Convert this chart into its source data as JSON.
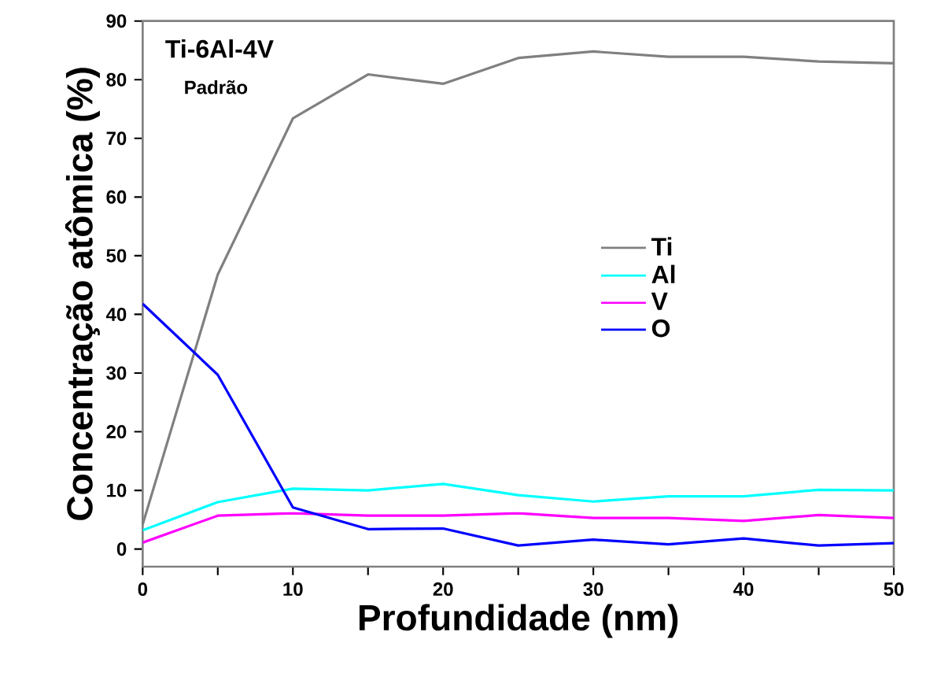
{
  "chart_data": {
    "type": "line",
    "title": "Ti-6Al-4V",
    "subtitle": "Padrão",
    "xlabel": "Profundidade (nm)",
    "ylabel": "Concentração atômica (%)",
    "x": [
      0,
      5,
      10,
      15,
      20,
      25,
      30,
      35,
      40,
      45,
      50
    ],
    "series": [
      {
        "name": "Ti",
        "color": "#808080",
        "values": [
          4.2,
          46.8,
          73.4,
          80.9,
          79.3,
          83.7,
          84.8,
          83.9,
          83.9,
          83.1,
          82.8
        ]
      },
      {
        "name": "Al",
        "color": "#00ffff",
        "values": [
          3.2,
          8,
          10.3,
          10,
          11.1,
          9.2,
          8.1,
          9,
          9,
          10.1,
          10
        ]
      },
      {
        "name": "V",
        "color": "#ff00ff",
        "values": [
          1.1,
          5.7,
          6.1,
          5.7,
          5.7,
          6.1,
          5.3,
          5.3,
          4.8,
          5.8,
          5.3
        ]
      },
      {
        "name": "O",
        "color": "#0000ff",
        "values": [
          41.8,
          29.7,
          7.1,
          3.4,
          3.5,
          0.6,
          1.6,
          0.8,
          1.8,
          0.6,
          1
        ]
      }
    ],
    "xlim": [
      0,
      50
    ],
    "ylim": [
      -3,
      90
    ],
    "xticks": [
      0,
      {
        "value": 5,
        "label": null
      },
      10,
      {
        "value": 15,
        "label": null
      },
      20,
      {
        "value": 25,
        "label": null
      },
      30,
      {
        "value": 35,
        "label": null
      },
      40,
      {
        "value": 45,
        "label": null
      },
      50
    ],
    "yticks": [
      0,
      10,
      20,
      30,
      40,
      50,
      60,
      70,
      80,
      90
    ],
    "legend": "right",
    "grid": false,
    "marker": "none",
    "line_style": "solid"
  }
}
